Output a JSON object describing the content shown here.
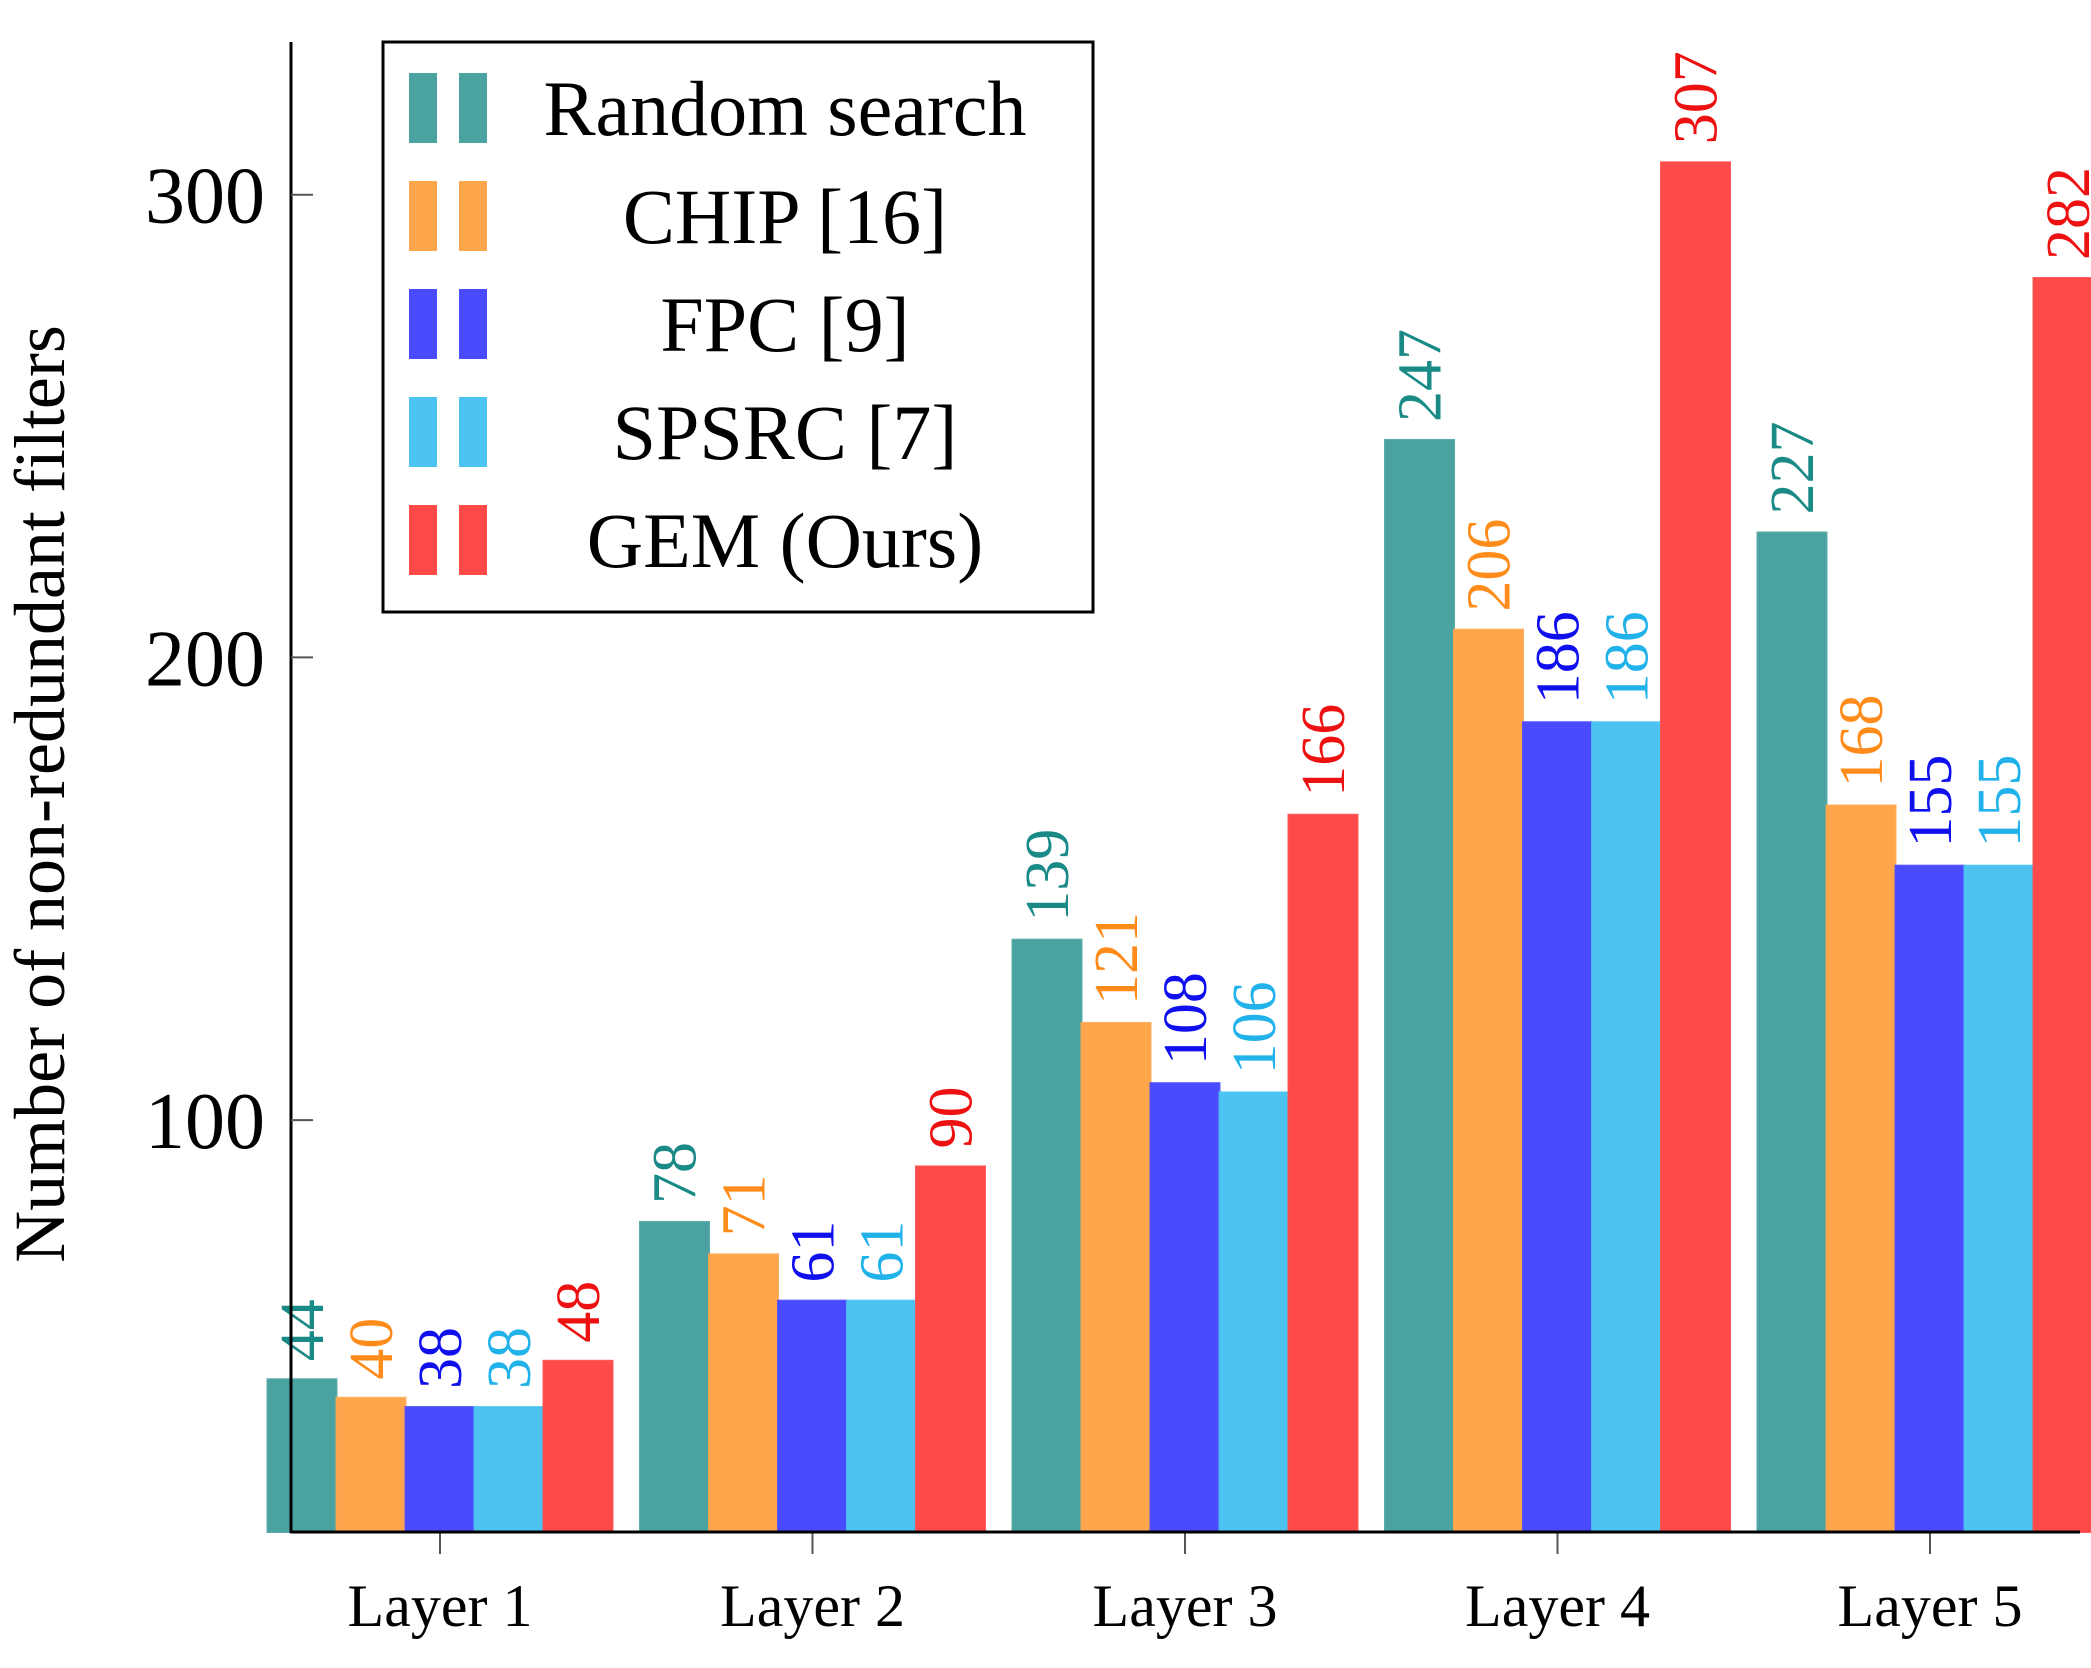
{
  "chart_data": {
    "type": "bar",
    "title": "",
    "xlabel": "",
    "ylabel": "Number of non-redundant filters",
    "categories": [
      "Layer 1",
      "Layer 2",
      "Layer 3",
      "Layer 4",
      "Layer 5"
    ],
    "series": [
      {
        "name": "Random search",
        "color": "#4aa3a1",
        "label_color": "#1a8a87",
        "values": [
          44,
          78,
          139,
          247,
          227
        ]
      },
      {
        "name": "CHIP [16]",
        "color": "#ffa64d",
        "label_color": "#ff8c1a",
        "values": [
          40,
          71,
          121,
          206,
          168
        ]
      },
      {
        "name": "FPC [9]",
        "color": "#4a4aff",
        "label_color": "#1010ee",
        "values": [
          38,
          61,
          108,
          186,
          155
        ]
      },
      {
        "name": "SPSRC [7]",
        "color": "#4dc3f2",
        "label_color": "#22b2ea",
        "values": [
          38,
          61,
          106,
          186,
          155
        ]
      },
      {
        "name": "GEM (Ours)",
        "color": "#ff4a4a",
        "label_color": "#ee1111",
        "values": [
          48,
          90,
          166,
          307,
          282
        ]
      }
    ],
    "y_ticks": [
      100,
      200,
      300
    ],
    "ylim": [
      11,
      333
    ],
    "legend_position": "top-left",
    "grid": false
  }
}
